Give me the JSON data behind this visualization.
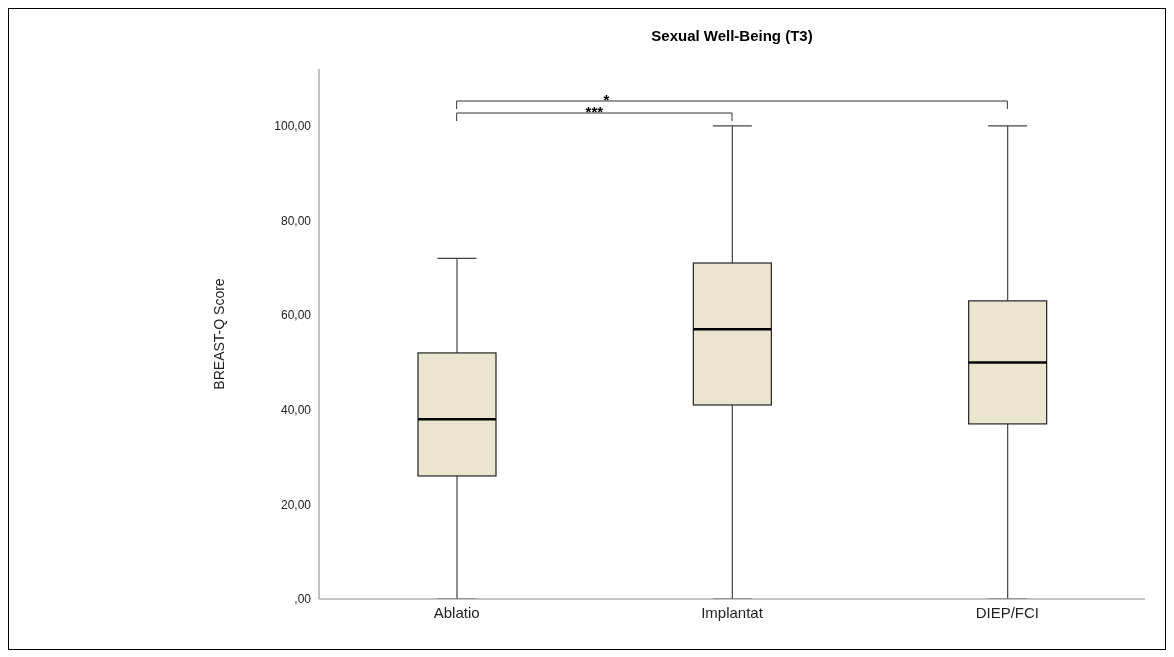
{
  "chart_data": {
    "type": "box",
    "title": "Sexual Well-Being (T3)",
    "ylabel": "BREAST-Q Score",
    "categories": [
      "Ablatio",
      "Implantat",
      "DIEP/FCI"
    ],
    "boxes": [
      {
        "low": 0,
        "q1": 26,
        "median": 38,
        "q3": 52,
        "high": 72
      },
      {
        "low": 0,
        "q1": 41,
        "median": 57,
        "q3": 71,
        "high": 100
      },
      {
        "low": 0,
        "q1": 37,
        "median": 50,
        "q3": 63,
        "high": 100
      }
    ],
    "color": "#ebe5cf",
    "ylim": [
      0,
      112
    ],
    "yticks": [
      {
        "value": 0,
        "label": ",00"
      },
      {
        "value": 20,
        "label": "20,00"
      },
      {
        "value": 40,
        "label": "40,00"
      },
      {
        "value": 60,
        "label": "60,00"
      },
      {
        "value": 80,
        "label": "80,00"
      },
      {
        "value": 100,
        "label": "100,00"
      }
    ],
    "annotations": [
      "***",
      "*"
    ],
    "grid": false
  }
}
